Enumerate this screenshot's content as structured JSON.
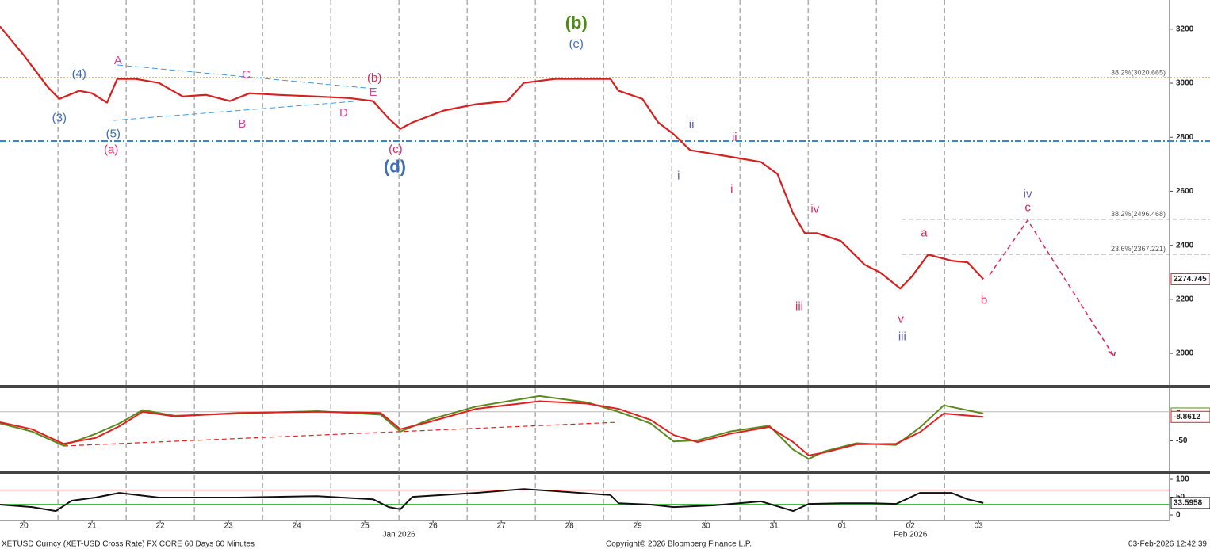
{
  "footer": {
    "left": "XETUSD Curncy (XET-USD Cross Rate) FX CORE 60 Days 60 Minutes",
    "center": "Copyright© 2026 Bloomberg Finance L.P.",
    "right": "03-Feb-2026 12:42:39"
  },
  "chart_data": [
    {
      "type": "line",
      "color": "#d62020",
      "xlim": [
        -0.35,
        16.8
      ],
      "xticks": [
        {
          "value": 0,
          "label": "20"
        },
        {
          "value": 1,
          "label": "21"
        },
        {
          "value": 2,
          "label": "22"
        },
        {
          "value": 3,
          "label": "23"
        },
        {
          "value": 4,
          "label": "24"
        },
        {
          "value": 5,
          "label": "25"
        },
        {
          "value": 6,
          "label": "26"
        },
        {
          "value": 7,
          "label": "27"
        },
        {
          "value": 8,
          "label": "28"
        },
        {
          "value": 9,
          "label": "29"
        },
        {
          "value": 10,
          "label": "30"
        },
        {
          "value": 11,
          "label": "31"
        },
        {
          "value": 12,
          "label": "01"
        },
        {
          "value": 13,
          "label": "02"
        },
        {
          "value": 14,
          "label": "03"
        }
      ],
      "month_labels": [
        {
          "value": 5.5,
          "label": "Jan 2026"
        },
        {
          "value": 13.0,
          "label": "Feb 2026"
        }
      ],
      "ylim": [
        1883,
        3308
      ],
      "yticks": [
        2000,
        2200,
        2400,
        2600,
        2800,
        3000,
        3200
      ],
      "grid": true,
      "x": [
        -0.35,
        0,
        0.35,
        0.52,
        0.81,
        1.0,
        1.22,
        1.37,
        1.63,
        1.98,
        2.33,
        2.67,
        3.02,
        3.31,
        3.72,
        4.3,
        4.77,
        5.12,
        5.35,
        5.52,
        5.7,
        6.16,
        6.63,
        7.09,
        7.33,
        7.79,
        8.26,
        8.6,
        8.72,
        9.07,
        9.3,
        9.53,
        9.77,
        10.12,
        10.47,
        10.81,
        11.05,
        11.28,
        11.45,
        11.63,
        11.98,
        12.33,
        12.56,
        12.85,
        13.02,
        13.26,
        13.6,
        13.84,
        14.07
      ],
      "values": [
        3210,
        3103,
        2986,
        2942,
        2972,
        2963,
        2928,
        3016,
        3016,
        3001,
        2951,
        2957,
        2934,
        2963,
        2957,
        2951,
        2945,
        2934,
        2869,
        2831,
        2855,
        2899,
        2922,
        2934,
        3001,
        3016,
        3016,
        3016,
        2972,
        2942,
        2855,
        2811,
        2752,
        2738,
        2723,
        2708,
        2664,
        2518,
        2445,
        2445,
        2416,
        2328,
        2299,
        2240,
        2284,
        2366,
        2343,
        2337,
        2274.745
      ],
      "levels": [
        {
          "value": 3020.665,
          "label": "38.2%(3020.665)",
          "color": "#b07a10"
        },
        {
          "value": 2496.468,
          "label": "38.2%(2496.468)",
          "color": "#777777"
        },
        {
          "value": 2367.221,
          "label": "23.6%(2367.221)",
          "color": "#777777"
        }
      ],
      "annotations": [
        {
          "text": "(4)",
          "x": 0.81,
          "y": 3033,
          "color": "#3b6fb6"
        },
        {
          "text": "(3)",
          "x": 0.52,
          "y": 2869,
          "color": "#3b6fb6"
        },
        {
          "text": "(5)",
          "x": 1.31,
          "y": 2811,
          "color": "#3b6fb6"
        },
        {
          "text": "(a)",
          "x": 1.28,
          "y": 2752,
          "color": "#e0245e"
        },
        {
          "text": "A",
          "x": 1.38,
          "y": 3082,
          "color": "#e0409a"
        },
        {
          "text": "C",
          "x": 3.26,
          "y": 3029,
          "color": "#e0409a"
        },
        {
          "text": "B",
          "x": 3.2,
          "y": 2848,
          "color": "#e0409a"
        },
        {
          "text": "D",
          "x": 4.69,
          "y": 2889,
          "color": "#e0409a"
        },
        {
          "text": "E",
          "x": 5.12,
          "y": 2965,
          "color": "#e0409a"
        },
        {
          "text": "(b)",
          "x": 5.14,
          "y": 3018,
          "color": "#e0245e"
        },
        {
          "text": "(c)",
          "x": 5.45,
          "y": 2754,
          "color": "#e0245e"
        },
        {
          "text": "(d)",
          "x": 5.44,
          "y": 2687,
          "color": "#3b6fb6"
        },
        {
          "text": "(e)",
          "x": 8.1,
          "y": 3143,
          "color": "#3b6fb6"
        },
        {
          "text": "(b)",
          "x": 8.1,
          "y": 3219,
          "color": "#4d8a1a"
        },
        {
          "text": "ii",
          "x": 9.79,
          "y": 2845,
          "color": "#5a5ab8"
        },
        {
          "text": "i",
          "x": 9.6,
          "y": 2655,
          "color": "#5a5ab8"
        },
        {
          "text": "ii",
          "x": 10.42,
          "y": 2798,
          "color": "#e0245e"
        },
        {
          "text": "i",
          "x": 10.38,
          "y": 2606,
          "color": "#e0245e"
        },
        {
          "text": "iv",
          "x": 11.6,
          "y": 2532,
          "color": "#e0245e"
        },
        {
          "text": "iii",
          "x": 11.37,
          "y": 2172,
          "color": "#e0245e"
        },
        {
          "text": "v",
          "x": 12.86,
          "y": 2125,
          "color": "#e0245e"
        },
        {
          "text": "iii",
          "x": 12.88,
          "y": 2061,
          "color": "#5a5ab8"
        },
        {
          "text": "a",
          "x": 13.2,
          "y": 2445,
          "color": "#e0245e"
        },
        {
          "text": "b",
          "x": 14.08,
          "y": 2195,
          "color": "#e0245e"
        },
        {
          "text": "iv",
          "x": 14.72,
          "y": 2588,
          "color": "#5a5ab8"
        },
        {
          "text": "c",
          "x": 14.72,
          "y": 2538,
          "color": "#e0245e"
        }
      ]
    },
    {
      "type": "line",
      "xlim": [
        -0.35,
        16.8
      ],
      "ylim": [
        -101,
        40.5
      ],
      "yticks": [
        -50
      ],
      "hlines": [
        {
          "value": 0,
          "color": "#bbbbbb"
        }
      ],
      "x": [
        -0.35,
        0.12,
        0.58,
        1.05,
        1.4,
        1.74,
        2.21,
        3.14,
        4.3,
        5.23,
        5.52,
        5.93,
        6.63,
        7.56,
        8.26,
        8.72,
        9.19,
        9.53,
        9.88,
        10.35,
        10.93,
        11.28,
        11.51,
        11.74,
        12.21,
        12.79,
        13.14,
        13.49,
        14.07
      ],
      "series": [
        {
          "color": "#5a8a1e",
          "values": [
            -20,
            -34,
            -58,
            -38,
            -20,
            3,
            -7,
            -3,
            1,
            -5,
            -34,
            -14,
            9,
            27,
            16,
            0,
            -20,
            -51,
            -49,
            -34,
            -24,
            -65,
            -81,
            -68,
            -54,
            -57,
            -27,
            11,
            -3
          ]
        },
        {
          "color": "#e02020",
          "values": [
            -18,
            -30,
            -55,
            -45,
            -25,
            0,
            -8,
            -2,
            0,
            -2,
            -30,
            -18,
            5,
            18,
            14,
            5,
            -14,
            -40,
            -52,
            -38,
            -26,
            -52,
            -75,
            -70,
            -56,
            -55,
            -35,
            -3,
            -8.8612
          ]
        }
      ]
    },
    {
      "type": "line",
      "xlim": [
        -0.35,
        16.8
      ],
      "ylim": [
        -11,
        115.6
      ],
      "yticks": [
        0,
        50,
        100
      ],
      "hlines": [
        {
          "value": 70,
          "color": "#e04040"
        },
        {
          "value": 30,
          "color": "#40c040"
        }
      ],
      "x": [
        -0.35,
        0.12,
        0.47,
        0.7,
        1.05,
        1.4,
        1.98,
        3.14,
        4.3,
        5.12,
        5.35,
        5.52,
        5.7,
        6.63,
        7.33,
        7.79,
        8.6,
        8.72,
        9.19,
        9.53,
        10.12,
        10.81,
        11.28,
        11.51,
        11.98,
        12.44,
        12.79,
        13.14,
        13.6,
        13.84,
        14.07
      ],
      "series": [
        {
          "color": "#111111",
          "values": [
            29,
            22,
            11,
            40,
            49,
            62,
            49,
            49,
            53,
            44,
            22,
            16,
            51,
            62,
            73,
            67,
            56,
            33,
            29,
            22,
            27,
            38,
            11,
            31,
            33,
            33,
            31,
            62,
            62,
            44,
            33.5958
          ]
        }
      ]
    }
  ]
}
